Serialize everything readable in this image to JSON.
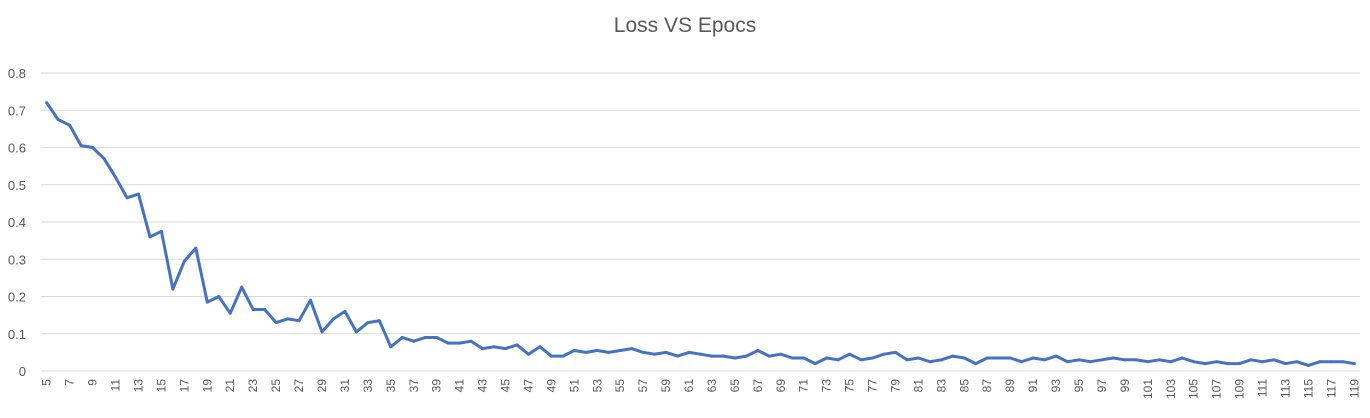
{
  "chart_data": {
    "type": "line",
    "title": "Loss VS Epocs",
    "xlabel": "",
    "ylabel": "",
    "ylim": [
      0,
      0.8
    ],
    "yticks": [
      0,
      0.1,
      0.2,
      0.3,
      0.4,
      0.5,
      0.6,
      0.7,
      0.8
    ],
    "ytick_labels": [
      "0",
      "0.1",
      "0.2",
      "0.3",
      "0.4",
      "0.5",
      "0.6",
      "0.7",
      "0.8"
    ],
    "xtick_labels": [
      5,
      7,
      9,
      11,
      13,
      15,
      17,
      19,
      21,
      23,
      25,
      27,
      29,
      31,
      33,
      35,
      37,
      39,
      41,
      43,
      45,
      47,
      49,
      51,
      53,
      55,
      57,
      59,
      61,
      63,
      65,
      67,
      69,
      71,
      73,
      75,
      77,
      79,
      81,
      83,
      85,
      87,
      89,
      91,
      93,
      95,
      97,
      99,
      101,
      103,
      105,
      107,
      109,
      111,
      113,
      115,
      117,
      119
    ],
    "grid": true,
    "legend": "none",
    "color": "#4472c4",
    "x": [
      5,
      6,
      7,
      8,
      9,
      10,
      11,
      12,
      13,
      14,
      15,
      16,
      17,
      18,
      19,
      20,
      21,
      22,
      23,
      24,
      25,
      26,
      27,
      28,
      29,
      30,
      31,
      32,
      33,
      34,
      35,
      36,
      37,
      38,
      39,
      40,
      41,
      42,
      43,
      44,
      45,
      46,
      47,
      48,
      49,
      50,
      51,
      52,
      53,
      54,
      55,
      56,
      57,
      58,
      59,
      60,
      61,
      62,
      63,
      64,
      65,
      66,
      67,
      68,
      69,
      70,
      71,
      72,
      73,
      74,
      75,
      76,
      77,
      78,
      79,
      80,
      81,
      82,
      83,
      84,
      85,
      86,
      87,
      88,
      89,
      90,
      91,
      92,
      93,
      94,
      95,
      96,
      97,
      98,
      99,
      100,
      101,
      102,
      103,
      104,
      105,
      106,
      107,
      108,
      109,
      110,
      111,
      112,
      113,
      114,
      115,
      116,
      117,
      118,
      119
    ],
    "values": [
      0.72,
      0.675,
      0.66,
      0.605,
      0.6,
      0.57,
      0.52,
      0.465,
      0.475,
      0.36,
      0.375,
      0.22,
      0.295,
      0.33,
      0.185,
      0.2,
      0.155,
      0.225,
      0.165,
      0.165,
      0.13,
      0.14,
      0.135,
      0.19,
      0.105,
      0.14,
      0.16,
      0.105,
      0.13,
      0.135,
      0.065,
      0.09,
      0.08,
      0.09,
      0.09,
      0.075,
      0.075,
      0.08,
      0.06,
      0.065,
      0.06,
      0.07,
      0.045,
      0.065,
      0.04,
      0.04,
      0.055,
      0.05,
      0.055,
      0.05,
      0.055,
      0.06,
      0.05,
      0.045,
      0.05,
      0.04,
      0.05,
      0.045,
      0.04,
      0.04,
      0.035,
      0.04,
      0.055,
      0.04,
      0.045,
      0.035,
      0.035,
      0.02,
      0.035,
      0.03,
      0.045,
      0.03,
      0.035,
      0.045,
      0.05,
      0.03,
      0.035,
      0.025,
      0.03,
      0.04,
      0.035,
      0.02,
      0.035,
      0.035,
      0.035,
      0.025,
      0.035,
      0.03,
      0.04,
      0.025,
      0.03,
      0.025,
      0.03,
      0.035,
      0.03,
      0.03,
      0.025,
      0.03,
      0.025,
      0.035,
      0.025,
      0.02,
      0.025,
      0.02,
      0.02,
      0.03,
      0.025,
      0.03,
      0.02,
      0.025,
      0.015,
      0.025,
      0.025,
      0.025,
      0.02
    ]
  }
}
